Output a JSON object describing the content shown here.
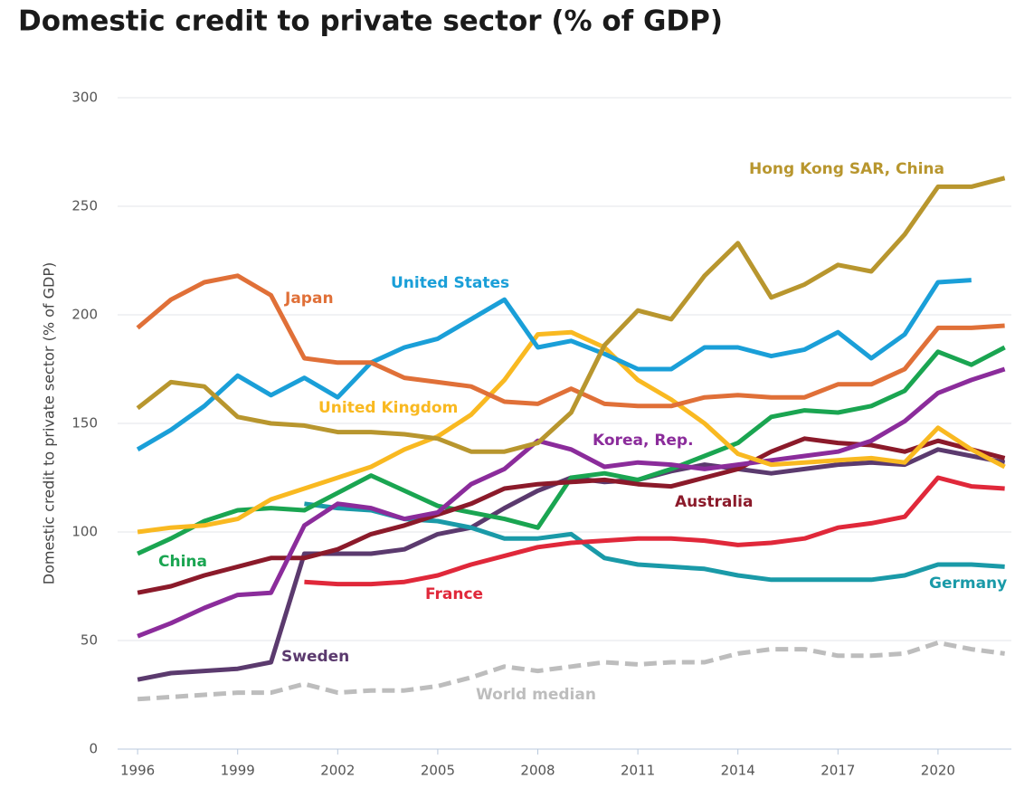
{
  "chart_data": {
    "type": "line",
    "title": "Domestic credit to private sector (% of GDP)",
    "y_label": "Domestic credit to private sector (% of GDP)",
    "x": [
      1996,
      1997,
      1998,
      1999,
      2000,
      2001,
      2002,
      2003,
      2004,
      2005,
      2006,
      2007,
      2008,
      2009,
      2010,
      2011,
      2012,
      2013,
      2014,
      2015,
      2016,
      2017,
      2018,
      2019,
      2020,
      2021,
      2022
    ],
    "xlim": [
      1995.4,
      2022.2
    ],
    "xticks": [
      1996,
      1999,
      2002,
      2005,
      2008,
      2011,
      2014,
      2017,
      2020
    ],
    "ylim": [
      0,
      300
    ],
    "yticks": [
      0,
      50,
      100,
      150,
      200,
      250,
      300
    ],
    "grid": true,
    "series": [
      {
        "name": "Hong Kong SAR, China",
        "color": "#b8962e",
        "values": [
          157,
          169,
          167,
          153,
          150,
          149,
          146,
          146,
          145,
          143,
          137,
          137,
          141,
          155,
          186,
          202,
          198,
          218,
          233,
          208,
          214,
          223,
          220,
          237,
          259,
          259,
          263
        ]
      },
      {
        "name": "Japan",
        "color": "#e07038",
        "values": [
          194,
          207,
          215,
          218,
          209,
          180,
          178,
          178,
          171,
          169,
          167,
          160,
          159,
          166,
          159,
          158,
          158,
          162,
          163,
          162,
          162,
          168,
          168,
          175,
          194,
          194,
          195
        ]
      },
      {
        "name": "United States",
        "color": "#1a9fd8",
        "values": [
          138,
          147,
          158,
          172,
          163,
          171,
          162,
          178,
          185,
          189,
          198,
          207,
          185,
          188,
          182,
          175,
          175,
          185,
          185,
          181,
          184,
          192,
          180,
          191,
          215,
          216,
          null
        ]
      },
      {
        "name": "United Kingdom",
        "color": "#f9b921",
        "values": [
          100,
          102,
          103,
          106,
          115,
          120,
          125,
          130,
          138,
          144,
          154,
          170,
          191,
          192,
          185,
          170,
          161,
          150,
          136,
          131,
          132,
          133,
          134,
          132,
          148,
          138,
          130
        ]
      },
      {
        "name": "Korea, Rep.",
        "color": "#8b2c9b",
        "values": [
          52,
          58,
          65,
          71,
          72,
          103,
          113,
          111,
          106,
          109,
          122,
          129,
          142,
          138,
          130,
          132,
          131,
          129,
          131,
          133,
          135,
          137,
          142,
          151,
          164,
          170,
          175
        ]
      },
      {
        "name": "Australia",
        "color": "#8b1a2a",
        "values": [
          72,
          75,
          80,
          84,
          88,
          88,
          92,
          99,
          103,
          108,
          113,
          120,
          122,
          123,
          124,
          122,
          121,
          125,
          129,
          137,
          143,
          141,
          140,
          137,
          142,
          138,
          134
        ]
      },
      {
        "name": "China",
        "color": "#1aa551",
        "values": [
          90,
          97,
          105,
          110,
          111,
          110,
          118,
          126,
          119,
          112,
          109,
          106,
          102,
          125,
          127,
          124,
          129,
          135,
          141,
          153,
          156,
          155,
          158,
          165,
          183,
          177,
          185
        ]
      },
      {
        "name": "France",
        "color": "#e0283a",
        "values": [
          null,
          null,
          null,
          null,
          null,
          77,
          76,
          76,
          77,
          80,
          85,
          89,
          93,
          95,
          96,
          97,
          97,
          96,
          94,
          95,
          97,
          102,
          104,
          107,
          125,
          121,
          120
        ]
      },
      {
        "name": "Germany",
        "color": "#1a9aa8",
        "values": [
          null,
          null,
          null,
          null,
          null,
          113,
          111,
          110,
          106,
          105,
          102,
          97,
          97,
          99,
          88,
          85,
          84,
          83,
          80,
          78,
          78,
          78,
          78,
          80,
          85,
          85,
          84
        ]
      },
      {
        "name": "Sweden",
        "color": "#5b3a6e",
        "values": [
          32,
          35,
          36,
          37,
          40,
          90,
          90,
          90,
          92,
          99,
          102,
          111,
          119,
          125,
          123,
          124,
          128,
          131,
          129,
          127,
          129,
          131,
          132,
          131,
          138,
          135,
          132
        ]
      },
      {
        "name": "World median",
        "color": "#bdbdbd",
        "dashed": true,
        "values": [
          23,
          24,
          25,
          26,
          26,
          30,
          26,
          27,
          27,
          29,
          33,
          38,
          36,
          38,
          40,
          39,
          40,
          40,
          44,
          46,
          46,
          43,
          43,
          44,
          49,
          46,
          44
        ]
      }
    ]
  }
}
